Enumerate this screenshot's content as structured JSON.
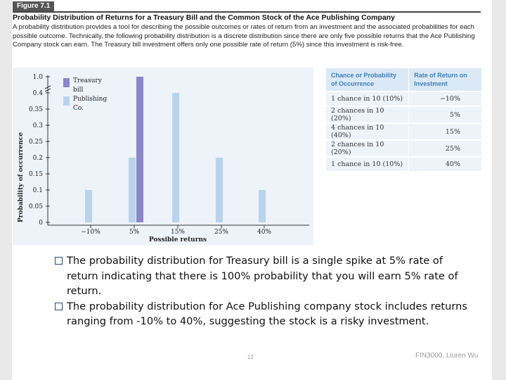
{
  "figure": {
    "tab_label": "Figure 7.1",
    "title": "Probability Distribution of Returns for a Treasury Bill and the Common Stock of the Ace Publishing Company",
    "caption": "A probability distribution provides a tool for describing the possible outcomes or rates of return from an investment and the associated probabilities for each possible outcome. Technically, the following probability distribution is a discrete distribution since there are only five possible returns that the Ace Publishing Company stock can earn. The Treasury bill investment offers only one possible rate of return (5%) since this investment is risk-free."
  },
  "chart_data": {
    "type": "bar",
    "xlabel": "Possible returns",
    "ylabel": "Probability of occurrence",
    "categories": [
      "−10%",
      "5%",
      "15%",
      "25%",
      "40%"
    ],
    "y_ticks": [
      "1.0",
      "0.4",
      "0.35",
      "0.3",
      "0.25",
      "0.2",
      "0.15",
      "0.1",
      "0.05",
      "0"
    ],
    "series": [
      {
        "name": "Treasury bill",
        "color": "#8a86c9",
        "values": [
          0,
          1.0,
          0,
          0,
          0
        ]
      },
      {
        "name": "Publishing Co.",
        "color": "#b9d3ec",
        "values": [
          0.1,
          0.2,
          0.4,
          0.2,
          0.1
        ]
      }
    ],
    "ylim": [
      0,
      1.0
    ],
    "axis_break": true,
    "legend_position": "top-left",
    "grid": false
  },
  "table": {
    "headers": [
      "Chance or Probability of Occurrence",
      "Rate of Return on Investment"
    ],
    "rows": [
      [
        "1 chance in 10 (10%)",
        "−10%"
      ],
      [
        "2 chances in 10 (20%)",
        "5%"
      ],
      [
        "4 chances in 10 (40%)",
        "15%"
      ],
      [
        "2 chances in 10 (20%)",
        "25%"
      ],
      [
        "1 chance in 10 (10%)",
        "40%"
      ]
    ]
  },
  "bullets": [
    "The probability distribution for Treasury bill is a single spike at 5% rate of return indicating that there is 100% probability that you will earn 5% rate of return.",
    "The probability distribution for Ace Publishing company stock includes returns ranging from -10% to 40%, suggesting the stock  is a risky investment."
  ],
  "footer": {
    "page_number": "12",
    "author": "FIN3000, Liuren Wu"
  },
  "colors": {
    "accent": "#1f4e79",
    "table_header_text": "#3f7fb6",
    "table_header_bg": "#dbe9f6"
  }
}
